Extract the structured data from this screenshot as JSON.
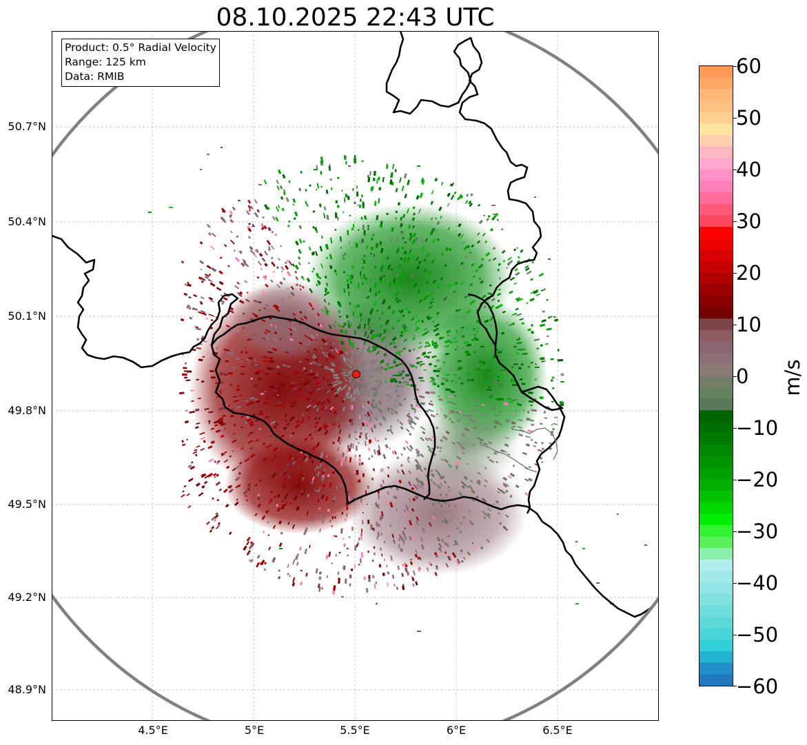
{
  "title": "08.10.2025 22:43 UTC",
  "info": {
    "product": "Product: 0.5° Radial Velocity",
    "range": "Range: 125 km",
    "source": "Data: RMIB"
  },
  "map": {
    "lon_ticks": [
      "4.5°E",
      "5°E",
      "5.5°E",
      "6°E",
      "6.5°E"
    ],
    "lat_ticks": [
      "50.7°N",
      "50.4°N",
      "50.1°N",
      "49.8°N",
      "49.5°N",
      "49.2°N",
      "48.9°N"
    ],
    "lon_range": [
      4.0,
      7.0
    ],
    "lat_range": [
      48.8,
      50.99
    ],
    "radar_site": {
      "lon": 5.505,
      "lat": 49.914
    },
    "radar_range_km": 125,
    "colors": {
      "border": "#000000",
      "range_ring": "#808080",
      "grid": "#b0b0b0",
      "site_marker": "#e8201a"
    }
  },
  "colorbar": {
    "label": "m/s",
    "ticks": [
      "60",
      "50",
      "40",
      "30",
      "20",
      "10",
      "0",
      "−10",
      "−20",
      "−30",
      "−40",
      "−50",
      "−60"
    ],
    "range": [
      -60,
      60
    ],
    "colors_from_top": [
      "#ff9955",
      "#ffa866",
      "#ffb877",
      "#ffc080",
      "#ffd090",
      "#ffe4a0",
      "#ffd0b0",
      "#ffb8c0",
      "#ffa8d0",
      "#ff90c8",
      "#ff80b8",
      "#ff6a98",
      "#ff5878",
      "#ff4860",
      "#ff0000",
      "#ec0000",
      "#d80000",
      "#c40000",
      "#b00000",
      "#9c0000",
      "#880000",
      "#760000",
      "#7c4648",
      "#8c5a60",
      "#8a6470",
      "#8a7074",
      "#8a7c74",
      "#728068",
      "#648260",
      "#58785a",
      "#006400",
      "#006e00",
      "#007a00",
      "#008800",
      "#009400",
      "#00a000",
      "#00b000",
      "#00c000",
      "#00d800",
      "#00ee00",
      "#30f430",
      "#5af05a",
      "#88f0a8",
      "#b0eeee",
      "#a0e8e8",
      "#90e4e4",
      "#80e0e0",
      "#6cdcdc",
      "#5cd8d8",
      "#48d4d8",
      "#30d0d8",
      "#20b4d0",
      "#2090c8",
      "#2078c0"
    ]
  }
}
